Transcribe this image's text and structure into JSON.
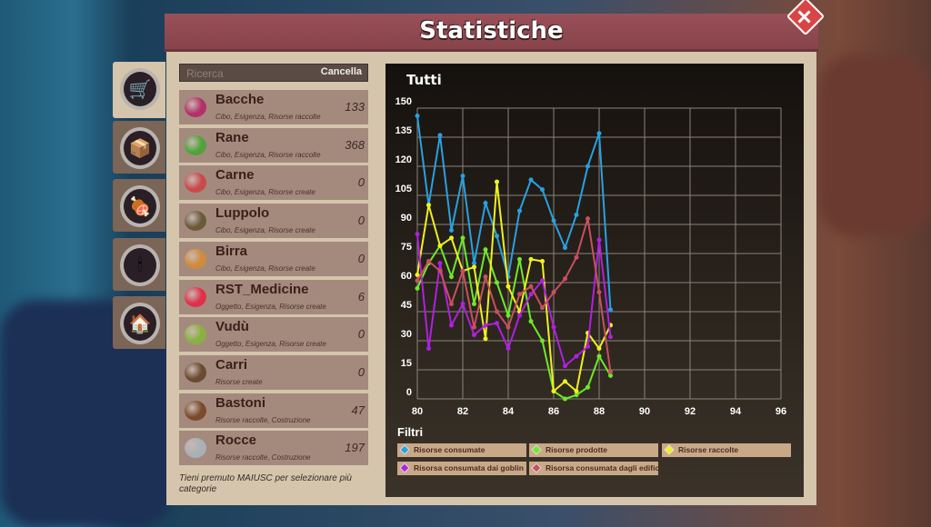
{
  "header": {
    "title": "Statistiche",
    "close_icon": "close-icon"
  },
  "tabs": [
    {
      "icon": "wheelbarrow-icon",
      "active": true
    },
    {
      "icon": "storage-icon"
    },
    {
      "icon": "food-icon"
    },
    {
      "icon": "candle-icon"
    },
    {
      "icon": "building-icon"
    }
  ],
  "search": {
    "placeholder": "Ricerca",
    "clear_label": "Cancella"
  },
  "items": [
    {
      "name": "Bacche",
      "tags": "Cibo, Esigenza, Risorse raccolte",
      "count": "133",
      "icon": "berry-icon",
      "color": "#b3306a"
    },
    {
      "name": "Rane",
      "tags": "Cibo, Esigenza, Risorse raccolte",
      "count": "368",
      "icon": "frog-icon",
      "color": "#4fa33a"
    },
    {
      "name": "Carne",
      "tags": "Cibo, Esigenza, Risorse create",
      "count": "0",
      "icon": "meat-icon",
      "color": "#c94a4a"
    },
    {
      "name": "Luppolo",
      "tags": "Cibo, Esigenza, Risorse create",
      "count": "0",
      "icon": "hops-barrel-icon",
      "color": "#6b5a3a"
    },
    {
      "name": "Birra",
      "tags": "Cibo, Esigenza, Risorse create",
      "count": "0",
      "icon": "beer-icon",
      "color": "#d08a3a"
    },
    {
      "name": "RST_Medicine",
      "tags": "Oggetto, Esigenza, Risorse create",
      "count": "6",
      "icon": "medicine-icon",
      "color": "#e0304a"
    },
    {
      "name": "Vudù",
      "tags": "Oggetto, Esigenza, Risorse create",
      "count": "0",
      "icon": "voodoo-icon",
      "color": "#8ab040"
    },
    {
      "name": "Carri",
      "tags": "Risorse create",
      "count": "0",
      "icon": "cart-icon",
      "color": "#6b4a30"
    },
    {
      "name": "Bastoni",
      "tags": "Risorse raccolte, Costruzione",
      "count": "47",
      "icon": "sticks-icon",
      "color": "#7a4a2a"
    },
    {
      "name": "Rocce",
      "tags": "Risorse raccolte, Costruzione",
      "count": "197",
      "icon": "rocks-icon",
      "color": "#a8b0b8"
    }
  ],
  "hint": "Tieni premuto MAIUSC per selezionare più categorie",
  "filters_title": "Filtri",
  "chart_data": {
    "type": "line",
    "title": "Tutti",
    "xlabel": "",
    "ylabel": "",
    "xlim": [
      80,
      96
    ],
    "ylim": [
      0,
      150
    ],
    "xticks": [
      80,
      82,
      84,
      86,
      88,
      90,
      92,
      94,
      96
    ],
    "yticks": [
      0,
      15,
      30,
      45,
      60,
      75,
      90,
      105,
      120,
      135,
      150
    ],
    "grid": true,
    "legend": "bottom",
    "x": [
      80,
      80.5,
      81,
      81.5,
      82,
      82.5,
      83,
      83.5,
      84,
      84.5,
      85,
      85.5,
      86,
      86.5,
      87,
      87.5,
      88,
      88.5
    ],
    "series": [
      {
        "name": "Risorse consumate",
        "color": "#2aa0e0",
        "values": [
          146,
          100,
          136,
          87,
          115,
          70,
          101,
          84,
          63,
          97,
          113,
          108,
          92,
          78,
          95,
          120,
          137,
          46
        ]
      },
      {
        "name": "Risorse prodotte",
        "color": "#6ee82a",
        "values": [
          57,
          70,
          79,
          63,
          83,
          49,
          77,
          60,
          43,
          72,
          40,
          30,
          4,
          0,
          2,
          6,
          22,
          12
        ]
      },
      {
        "name": "Risorse raccolte",
        "color": "#f0f020",
        "values": [
          64,
          100,
          79,
          83,
          66,
          68,
          31,
          112,
          58,
          45,
          72,
          71,
          4,
          9,
          4,
          34,
          26,
          38
        ]
      },
      {
        "name": "Risorsa consumata dai goblin",
        "color": "#b020e0",
        "values": [
          85,
          26,
          70,
          38,
          49,
          33,
          38,
          39,
          26,
          43,
          54,
          61,
          37,
          17,
          22,
          27,
          82,
          32
        ]
      },
      {
        "name": "Risorsa consumata dagli edifici",
        "color": "#c8505e",
        "values": [
          61,
          71,
          66,
          49,
          66,
          37,
          63,
          45,
          37,
          54,
          58,
          47,
          55,
          62,
          73,
          93,
          55,
          14
        ]
      }
    ]
  }
}
